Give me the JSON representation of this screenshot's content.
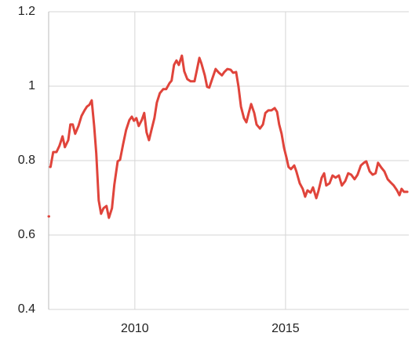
{
  "chart_data": {
    "type": "line",
    "x": [
      2007.14,
      2007.16,
      2007.19,
      2007.29,
      2007.4,
      2007.5,
      2007.6,
      2007.68,
      2007.79,
      2007.86,
      2007.94,
      2008.02,
      2008.13,
      2008.23,
      2008.33,
      2008.41,
      2008.49,
      2008.57,
      2008.65,
      2008.72,
      2008.8,
      2008.88,
      2008.96,
      2009.06,
      2009.14,
      2009.24,
      2009.32,
      2009.43,
      2009.51,
      2009.61,
      2009.71,
      2009.82,
      2009.9,
      2009.97,
      2010.05,
      2010.13,
      2010.23,
      2010.31,
      2010.39,
      2010.47,
      2010.55,
      2010.65,
      2010.73,
      2010.83,
      2010.94,
      2011.04,
      2011.15,
      2011.22,
      2011.3,
      2011.38,
      2011.46,
      2011.56,
      2011.64,
      2011.74,
      2011.85,
      2011.98,
      2012.06,
      2012.14,
      2012.21,
      2012.32,
      2012.4,
      2012.47,
      2012.58,
      2012.68,
      2012.79,
      2012.89,
      2012.97,
      2013.07,
      2013.18,
      2013.26,
      2013.36,
      2013.44,
      2013.52,
      2013.62,
      2013.7,
      2013.78,
      2013.86,
      2013.96,
      2014.04,
      2014.15,
      2014.25,
      2014.33,
      2014.43,
      2014.53,
      2014.64,
      2014.72,
      2014.79,
      2014.87,
      2014.95,
      2015.03,
      2015.1,
      2015.18,
      2015.29,
      2015.36,
      2015.47,
      2015.57,
      2015.65,
      2015.73,
      2015.83,
      2015.91,
      2016.02,
      2016.09,
      2016.2,
      2016.28,
      2016.35,
      2016.46,
      2016.56,
      2016.66,
      2016.77,
      2016.87,
      2016.98,
      2017.08,
      2017.18,
      2017.29,
      2017.39,
      2017.5,
      2017.6,
      2017.68,
      2017.79,
      2017.89,
      2017.99,
      2018.07,
      2018.18,
      2018.28,
      2018.39,
      2018.49,
      2018.59,
      2018.7,
      2018.78,
      2018.85,
      2018.93,
      2019.04
    ],
    "series": [
      {
        "color": "#e0443b",
        "values": [
          0.65,
          null,
          0.783,
          0.823,
          0.823,
          0.84,
          0.865,
          0.836,
          0.855,
          0.897,
          0.897,
          0.872,
          0.893,
          0.92,
          0.935,
          0.945,
          0.95,
          0.962,
          0.893,
          0.819,
          0.693,
          0.657,
          0.672,
          0.678,
          0.646,
          0.672,
          0.735,
          0.798,
          0.802,
          0.844,
          0.882,
          0.909,
          0.918,
          0.907,
          0.914,
          0.893,
          0.909,
          0.928,
          0.876,
          0.855,
          0.882,
          0.914,
          0.956,
          0.981,
          0.992,
          0.992,
          1.008,
          1.015,
          1.057,
          1.069,
          1.057,
          1.082,
          1.04,
          1.019,
          1.013,
          1.013,
          1.044,
          1.076,
          1.061,
          1.029,
          0.998,
          0.996,
          1.023,
          1.046,
          1.036,
          1.029,
          1.038,
          1.046,
          1.044,
          1.036,
          1.038,
          0.998,
          0.945,
          0.914,
          0.903,
          0.928,
          0.952,
          0.928,
          0.897,
          0.886,
          0.897,
          0.928,
          0.935,
          0.935,
          0.941,
          0.931,
          0.897,
          0.872,
          0.834,
          0.808,
          0.783,
          0.777,
          0.787,
          0.771,
          0.739,
          0.724,
          0.703,
          0.72,
          0.714,
          0.728,
          0.699,
          0.718,
          0.754,
          0.766,
          0.733,
          0.739,
          0.76,
          0.754,
          0.76,
          0.733,
          0.745,
          0.766,
          0.762,
          0.75,
          0.762,
          0.787,
          0.794,
          0.798,
          0.771,
          0.762,
          0.766,
          0.794,
          0.781,
          0.771,
          0.75,
          0.741,
          0.733,
          0.72,
          0.707,
          0.724,
          0.716,
          0.716
        ]
      }
    ],
    "xlim": [
      2007.14,
      2019.09
    ],
    "xticks": [
      2010,
      2015
    ],
    "ylim": [
      0.4,
      1.2
    ],
    "yticks": [
      0.4,
      0.6,
      0.8,
      1,
      1.2
    ],
    "grid": true
  }
}
